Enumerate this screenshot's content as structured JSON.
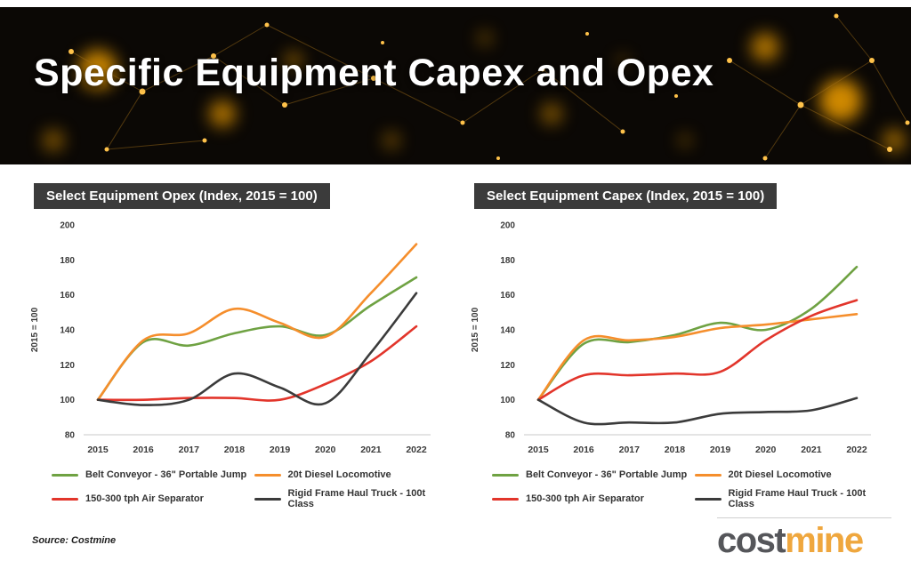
{
  "slide": {
    "title": "Specific Equipment Capex and Opex",
    "source": "Source: Costmine",
    "logo": {
      "part1": "cost",
      "part2": "mine"
    }
  },
  "colors": {
    "banner_bg": "#0b0805",
    "accent_gold": "#f2a33c",
    "title_box_bg": "#3b3b3b",
    "green": "#6fa243",
    "orange": "#f58e2c",
    "red": "#e2352b",
    "dark": "#3b3b3b"
  },
  "chart_data": [
    {
      "type": "line",
      "title": "Select Equipment Opex (Index, 2015 = 100)",
      "ylabel": "2015 = 100",
      "ylim": [
        80,
        200
      ],
      "yticks": [
        80,
        100,
        120,
        140,
        160,
        180,
        200
      ],
      "categories": [
        "2015",
        "2016",
        "2017",
        "2018",
        "2019",
        "2020",
        "2021",
        "2022"
      ],
      "grid": false,
      "legend_position": "bottom",
      "series": [
        {
          "name": "Belt Conveyor - 36\" Portable Jump",
          "color": "#6fa243",
          "values": [
            100,
            133,
            131,
            138,
            142,
            137,
            154,
            170
          ]
        },
        {
          "name": "20t Diesel Locomotive",
          "color": "#f58e2c",
          "values": [
            100,
            134,
            138,
            152,
            144,
            136,
            161,
            189
          ]
        },
        {
          "name": "150-300 tph Air Separator",
          "color": "#e2352b",
          "values": [
            100,
            100,
            101,
            101,
            100,
            109,
            122,
            142
          ]
        },
        {
          "name": "Rigid Frame Haul Truck - 100t Class",
          "color": "#3b3b3b",
          "values": [
            100,
            97,
            100,
            115,
            107,
            98,
            127,
            161
          ]
        }
      ]
    },
    {
      "type": "line",
      "title": "Select Equipment Capex (Index, 2015 = 100)",
      "ylabel": "2015 = 100",
      "ylim": [
        80,
        200
      ],
      "yticks": [
        80,
        100,
        120,
        140,
        160,
        180,
        200
      ],
      "categories": [
        "2015",
        "2016",
        "2017",
        "2018",
        "2019",
        "2020",
        "2021",
        "2022"
      ],
      "grid": false,
      "legend_position": "bottom",
      "series": [
        {
          "name": "Belt Conveyor - 36\" Portable Jump",
          "color": "#6fa243",
          "values": [
            100,
            132,
            133,
            137,
            144,
            140,
            152,
            176
          ]
        },
        {
          "name": "20t Diesel Locomotive",
          "color": "#f58e2c",
          "values": [
            100,
            134,
            134,
            136,
            141,
            143,
            146,
            149
          ]
        },
        {
          "name": "150-300 tph Air Separator",
          "color": "#e2352b",
          "values": [
            100,
            114,
            114,
            115,
            116,
            134,
            148,
            157
          ]
        },
        {
          "name": "Rigid Frame Haul Truck - 100t Class",
          "color": "#3b3b3b",
          "values": [
            100,
            87,
            87,
            87,
            92,
            93,
            94,
            101
          ]
        }
      ]
    }
  ]
}
